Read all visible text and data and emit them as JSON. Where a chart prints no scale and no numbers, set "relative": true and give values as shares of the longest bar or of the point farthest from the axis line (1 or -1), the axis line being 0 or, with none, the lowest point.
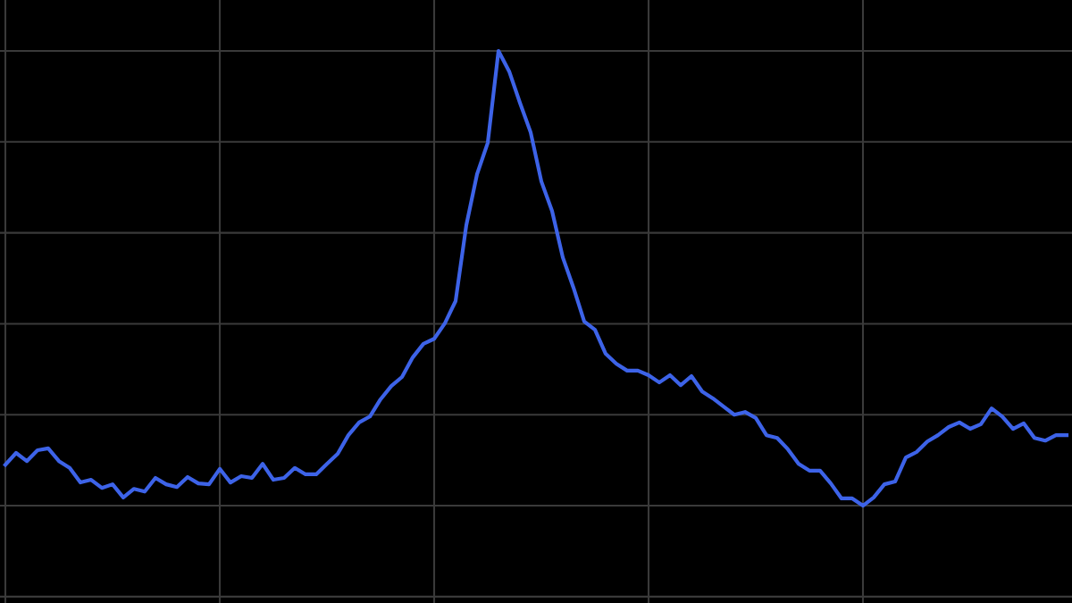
{
  "chart_data": {
    "type": "line",
    "relative": true,
    "grid": true,
    "tick_labels": false,
    "marker": "none",
    "line_style": "solid",
    "categories": [
      null,
      null,
      null,
      null,
      null,
      null,
      null,
      null,
      null,
      null,
      null,
      null,
      null,
      null,
      null,
      null,
      null,
      null,
      null,
      null,
      null,
      null,
      null,
      null,
      null,
      null,
      null,
      null,
      null,
      null,
      null,
      null,
      null,
      null,
      null,
      null,
      null,
      null,
      null,
      null,
      null,
      null,
      null,
      null,
      null,
      null,
      null,
      null,
      null,
      null,
      null,
      null,
      null,
      null,
      null,
      null,
      null,
      null,
      null,
      null,
      null,
      null,
      null,
      null,
      null,
      null,
      null,
      null,
      null,
      null,
      null,
      null,
      null,
      null,
      null,
      null,
      null,
      null,
      null,
      null,
      null,
      null,
      null,
      null,
      null,
      null,
      null,
      null,
      null,
      null,
      null,
      null,
      null,
      null,
      null,
      null,
      null,
      null,
      null,
      null
    ],
    "series": [
      {
        "color": "#3d63e8",
        "values": [
          0.09,
          0.116,
          0.098,
          0.122,
          0.126,
          0.098,
          0.083,
          0.051,
          0.057,
          0.039,
          0.047,
          0.018,
          0.037,
          0.031,
          0.061,
          0.047,
          0.041,
          0.063,
          0.049,
          0.047,
          0.081,
          0.051,
          0.065,
          0.061,
          0.092,
          0.057,
          0.061,
          0.083,
          0.069,
          0.069,
          0.092,
          0.114,
          0.155,
          0.183,
          0.196,
          0.234,
          0.263,
          0.283,
          0.326,
          0.356,
          0.367,
          0.401,
          0.45,
          0.617,
          0.729,
          0.798,
          1,
          0.955,
          0.886,
          0.821,
          0.713,
          0.648,
          0.546,
          0.479,
          0.405,
          0.387,
          0.334,
          0.312,
          0.297,
          0.297,
          0.287,
          0.271,
          0.287,
          0.265,
          0.285,
          0.251,
          0.236,
          0.218,
          0.2,
          0.206,
          0.193,
          0.155,
          0.149,
          0.124,
          0.092,
          0.077,
          0.077,
          0.049,
          0.016,
          0.016,
          0,
          0.018,
          0.047,
          0.053,
          0.106,
          0.118,
          0.141,
          0.155,
          0.173,
          0.183,
          0.169,
          0.179,
          0.214,
          0.196,
          0.169,
          0.181,
          0.149,
          0.143,
          0.155,
          0.155
        ]
      }
    ]
  }
}
